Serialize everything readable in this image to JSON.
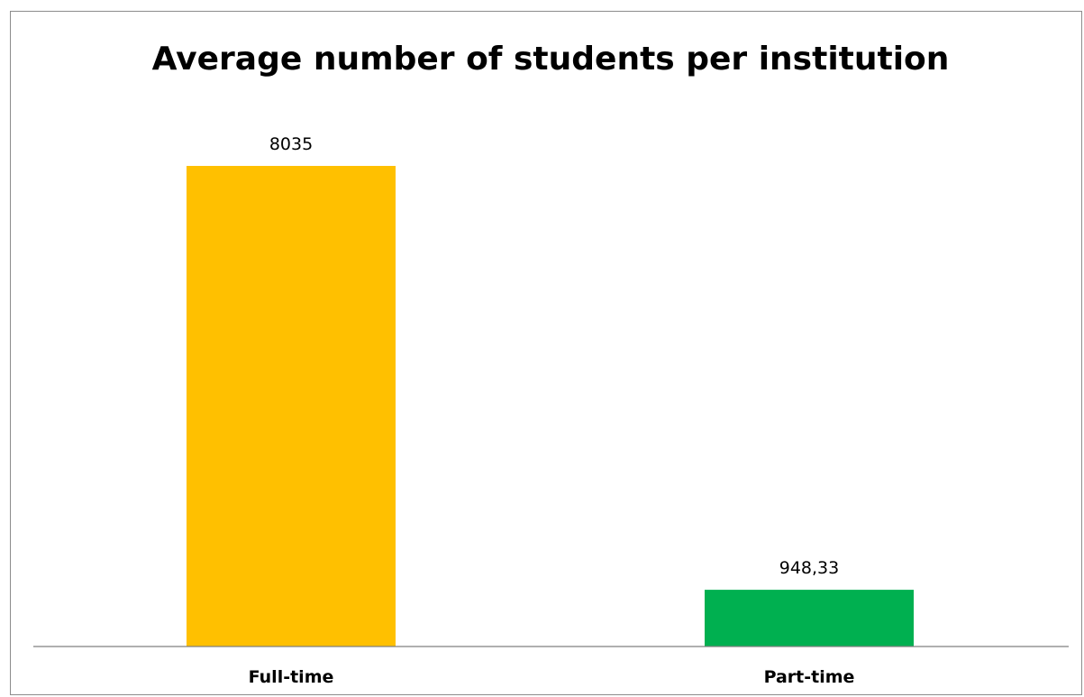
{
  "chart_data": {
    "type": "bar",
    "title": "Average number of students per institution",
    "categories": [
      "Full-time",
      "Part-time"
    ],
    "values": [
      8035,
      948.33
    ],
    "value_labels": [
      "8035",
      "948,33"
    ],
    "colors": [
      "#FFC000",
      "#00B050"
    ],
    "xlabel": "",
    "ylabel": "",
    "ylim": [
      0,
      8035
    ],
    "grid": false,
    "legend": "none"
  }
}
